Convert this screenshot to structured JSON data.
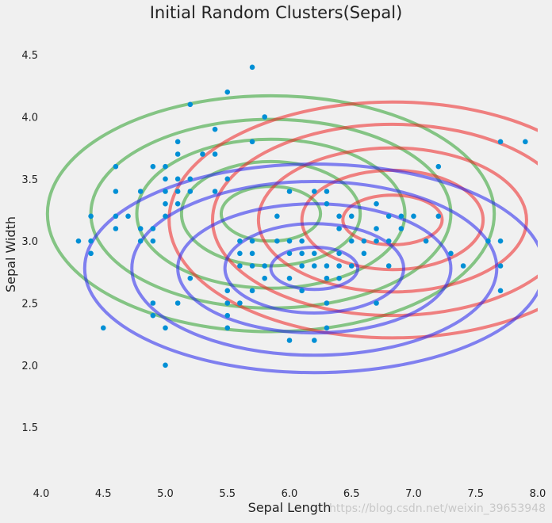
{
  "chart_data": {
    "type": "scatter",
    "title": "Initial Random Clusters(Sepal)",
    "xlabel": "Sepal Length",
    "ylabel": "Sepal Width",
    "xlim": [
      4.0,
      8.0
    ],
    "ylim": [
      1.15,
      4.75
    ],
    "xticks": [
      "4.0",
      "4.5",
      "5.0",
      "5.5",
      "6.0",
      "6.5",
      "7.0",
      "7.5",
      "8.0"
    ],
    "yticks": [
      "1.5",
      "2.0",
      "2.5",
      "3.0",
      "3.5",
      "4.0",
      "4.5"
    ],
    "grid": false,
    "point_color": "#008fd5",
    "points": [
      [
        5.7,
        4.4
      ],
      [
        5.5,
        4.2
      ],
      [
        5.2,
        4.1
      ],
      [
        5.8,
        4.0
      ],
      [
        5.4,
        3.9
      ],
      [
        5.1,
        3.8
      ],
      [
        5.7,
        3.8
      ],
      [
        7.7,
        3.8
      ],
      [
        7.9,
        3.8
      ],
      [
        5.0,
        3.6
      ],
      [
        4.6,
        3.6
      ],
      [
        5.1,
        3.7
      ],
      [
        5.3,
        3.7
      ],
      [
        5.4,
        3.7
      ],
      [
        7.2,
        3.6
      ],
      [
        4.9,
        3.6
      ],
      [
        5.0,
        3.5
      ],
      [
        5.1,
        3.5
      ],
      [
        5.2,
        3.5
      ],
      [
        5.5,
        3.5
      ],
      [
        4.6,
        3.4
      ],
      [
        4.8,
        3.4
      ],
      [
        5.0,
        3.4
      ],
      [
        5.1,
        3.4
      ],
      [
        5.2,
        3.4
      ],
      [
        5.4,
        3.4
      ],
      [
        6.0,
        3.4
      ],
      [
        6.2,
        3.4
      ],
      [
        6.3,
        3.4
      ],
      [
        5.0,
        3.3
      ],
      [
        5.1,
        3.3
      ],
      [
        6.3,
        3.3
      ],
      [
        6.7,
        3.3
      ],
      [
        4.4,
        3.2
      ],
      [
        4.6,
        3.2
      ],
      [
        4.7,
        3.2
      ],
      [
        5.0,
        3.2
      ],
      [
        5.9,
        3.2
      ],
      [
        6.4,
        3.2
      ],
      [
        6.5,
        3.2
      ],
      [
        6.8,
        3.2
      ],
      [
        6.9,
        3.2
      ],
      [
        7.0,
        3.2
      ],
      [
        7.2,
        3.2
      ],
      [
        4.6,
        3.1
      ],
      [
        4.8,
        3.1
      ],
      [
        4.9,
        3.1
      ],
      [
        6.4,
        3.1
      ],
      [
        6.7,
        3.1
      ],
      [
        6.9,
        3.1
      ],
      [
        4.3,
        3.0
      ],
      [
        4.4,
        3.0
      ],
      [
        4.8,
        3.0
      ],
      [
        4.9,
        3.0
      ],
      [
        5.6,
        3.0
      ],
      [
        5.7,
        3.0
      ],
      [
        5.9,
        3.0
      ],
      [
        6.0,
        3.0
      ],
      [
        6.1,
        3.0
      ],
      [
        6.5,
        3.0
      ],
      [
        6.6,
        3.0
      ],
      [
        6.7,
        3.0
      ],
      [
        6.8,
        3.0
      ],
      [
        7.1,
        3.0
      ],
      [
        7.6,
        3.0
      ],
      [
        7.7,
        3.0
      ],
      [
        4.4,
        2.9
      ],
      [
        5.6,
        2.9
      ],
      [
        5.7,
        2.9
      ],
      [
        6.0,
        2.9
      ],
      [
        6.1,
        2.9
      ],
      [
        6.2,
        2.9
      ],
      [
        6.4,
        2.9
      ],
      [
        6.6,
        2.9
      ],
      [
        7.3,
        2.9
      ],
      [
        5.6,
        2.8
      ],
      [
        5.7,
        2.8
      ],
      [
        5.8,
        2.8
      ],
      [
        6.1,
        2.8
      ],
      [
        6.2,
        2.8
      ],
      [
        6.3,
        2.8
      ],
      [
        6.4,
        2.8
      ],
      [
        6.5,
        2.8
      ],
      [
        6.8,
        2.8
      ],
      [
        7.4,
        2.8
      ],
      [
        7.7,
        2.8
      ],
      [
        5.2,
        2.7
      ],
      [
        5.8,
        2.7
      ],
      [
        6.0,
        2.7
      ],
      [
        6.3,
        2.7
      ],
      [
        6.4,
        2.7
      ],
      [
        5.5,
        2.6
      ],
      [
        5.7,
        2.6
      ],
      [
        6.1,
        2.6
      ],
      [
        7.7,
        2.6
      ],
      [
        4.9,
        2.5
      ],
      [
        5.1,
        2.5
      ],
      [
        5.5,
        2.5
      ],
      [
        5.6,
        2.5
      ],
      [
        6.3,
        2.5
      ],
      [
        6.7,
        2.5
      ],
      [
        4.9,
        2.4
      ],
      [
        5.5,
        2.4
      ],
      [
        4.5,
        2.3
      ],
      [
        5.0,
        2.3
      ],
      [
        5.5,
        2.3
      ],
      [
        6.3,
        2.3
      ],
      [
        6.0,
        2.2
      ],
      [
        6.2,
        2.2
      ],
      [
        5.0,
        2.0
      ]
    ],
    "clusters": [
      {
        "color": "#2ca02c",
        "center": [
          5.85,
          3.22
        ],
        "ellipses": [
          [
            0.4,
            0.22
          ],
          [
            0.72,
            0.42
          ],
          [
            1.08,
            0.6
          ],
          [
            1.45,
            0.76
          ],
          [
            1.8,
            0.95
          ]
        ]
      },
      {
        "color": "#ee2222",
        "center": [
          6.83,
          3.17
        ],
        "ellipses": [
          [
            0.4,
            0.2
          ],
          [
            0.73,
            0.4
          ],
          [
            1.08,
            0.58
          ],
          [
            1.45,
            0.77
          ],
          [
            1.8,
            0.95
          ]
        ]
      },
      {
        "color": "#2222ee",
        "center": [
          6.2,
          2.78
        ],
        "ellipses": [
          [
            0.35,
            0.17
          ],
          [
            0.72,
            0.36
          ],
          [
            1.1,
            0.52
          ],
          [
            1.47,
            0.7
          ],
          [
            1.85,
            0.84
          ]
        ]
      }
    ]
  },
  "watermark": "https://blog.csdn.net/weixin_39653948"
}
